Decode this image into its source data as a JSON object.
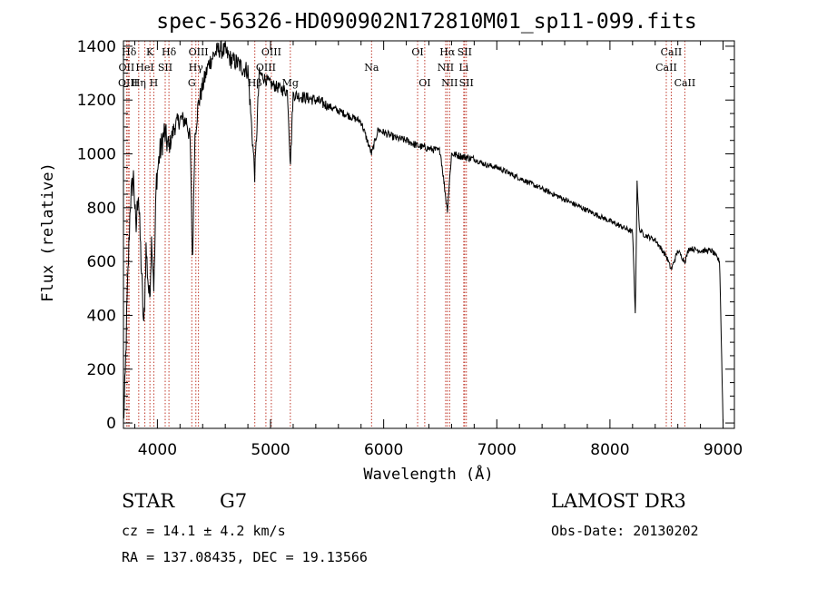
{
  "chart_data": {
    "type": "line",
    "title": "spec-56326-HD090902N172810M01_sp11-099.fits",
    "xlabel": "Wavelength (Å)",
    "ylabel": "Flux (relative)",
    "xlim": [
      3700,
      9100
    ],
    "ylim": [
      -20,
      1420
    ],
    "xticks": [
      4000,
      5000,
      6000,
      7000,
      8000,
      9000
    ],
    "yticks": [
      0,
      200,
      400,
      600,
      800,
      1000,
      1200,
      1400
    ],
    "spectrum_anchors": [
      [
        3700,
        0
      ],
      [
        3715,
        150
      ],
      [
        3730,
        420
      ],
      [
        3760,
        820
      ],
      [
        3790,
        920
      ],
      [
        3810,
        700
      ],
      [
        3830,
        880
      ],
      [
        3860,
        560
      ],
      [
        3880,
        340
      ],
      [
        3900,
        650
      ],
      [
        3930,
        450
      ],
      [
        3950,
        700
      ],
      [
        3970,
        500
      ],
      [
        3990,
        900
      ],
      [
        4020,
        1000
      ],
      [
        4060,
        1080
      ],
      [
        4100,
        1020
      ],
      [
        4150,
        1100
      ],
      [
        4200,
        1130
      ],
      [
        4260,
        1120
      ],
      [
        4290,
        1050
      ],
      [
        4310,
        580
      ],
      [
        4330,
        1060
      ],
      [
        4360,
        1180
      ],
      [
        4400,
        1250
      ],
      [
        4450,
        1330
      ],
      [
        4500,
        1370
      ],
      [
        4550,
        1390
      ],
      [
        4600,
        1380
      ],
      [
        4650,
        1350
      ],
      [
        4700,
        1340
      ],
      [
        4750,
        1320
      ],
      [
        4800,
        1310
      ],
      [
        4861,
        920
      ],
      [
        4900,
        1300
      ],
      [
        4950,
        1280
      ],
      [
        5000,
        1260
      ],
      [
        5050,
        1250
      ],
      [
        5100,
        1240
      ],
      [
        5150,
        1230
      ],
      [
        5175,
        960
      ],
      [
        5200,
        1220
      ],
      [
        5300,
        1210
      ],
      [
        5400,
        1200
      ],
      [
        5500,
        1180
      ],
      [
        5600,
        1160
      ],
      [
        5700,
        1140
      ],
      [
        5800,
        1120
      ],
      [
        5893,
        1000
      ],
      [
        5950,
        1090
      ],
      [
        6000,
        1080
      ],
      [
        6100,
        1060
      ],
      [
        6200,
        1050
      ],
      [
        6300,
        1030
      ],
      [
        6400,
        1020
      ],
      [
        6500,
        1010
      ],
      [
        6563,
        790
      ],
      [
        6600,
        1000
      ],
      [
        6700,
        990
      ],
      [
        6800,
        980
      ],
      [
        6900,
        960
      ],
      [
        7000,
        950
      ],
      [
        7100,
        930
      ],
      [
        7200,
        910
      ],
      [
        7300,
        890
      ],
      [
        7400,
        870
      ],
      [
        7500,
        850
      ],
      [
        7600,
        830
      ],
      [
        7700,
        810
      ],
      [
        7800,
        790
      ],
      [
        7900,
        770
      ],
      [
        8000,
        750
      ],
      [
        8100,
        730
      ],
      [
        8200,
        710
      ],
      [
        8225,
        400
      ],
      [
        8240,
        900
      ],
      [
        8260,
        720
      ],
      [
        8300,
        700
      ],
      [
        8400,
        680
      ],
      [
        8498,
        620
      ],
      [
        8542,
        570
      ],
      [
        8600,
        640
      ],
      [
        8662,
        600
      ],
      [
        8700,
        650
      ],
      [
        8800,
        640
      ],
      [
        8900,
        640
      ],
      [
        8970,
        600
      ],
      [
        8990,
        200
      ],
      [
        9000,
        0
      ]
    ],
    "emission_lines": [
      {
        "label": "Hδ",
        "x": 3750,
        "row": 1
      },
      {
        "label": "K",
        "x": 3934,
        "row": 1
      },
      {
        "label": "Hδ",
        "x": 4102,
        "row": 1
      },
      {
        "label": "OIII",
        "x": 4363,
        "row": 1
      },
      {
        "label": "OIII",
        "x": 5007,
        "row": 1
      },
      {
        "label": "OI",
        "x": 6300,
        "row": 1
      },
      {
        "label": "Hα",
        "x": 6563,
        "row": 1
      },
      {
        "label": "SII",
        "x": 6716,
        "row": 1
      },
      {
        "label": "CaII",
        "x": 8542,
        "row": 1
      },
      {
        "label": "OII",
        "x": 3727,
        "row": 2
      },
      {
        "label": "HeI",
        "x": 3889,
        "row": 2
      },
      {
        "label": "SII",
        "x": 4069,
        "row": 2
      },
      {
        "label": "Hγ",
        "x": 4340,
        "row": 2
      },
      {
        "label": "OIII",
        "x": 4959,
        "row": 2
      },
      {
        "label": "Na",
        "x": 5893,
        "row": 2
      },
      {
        "label": "NII",
        "x": 6548,
        "row": 2
      },
      {
        "label": "Li",
        "x": 6708,
        "row": 2
      },
      {
        "label": "CaII",
        "x": 8498,
        "row": 2
      },
      {
        "label": "OIII",
        "x": 3740,
        "row": 3
      },
      {
        "label": "Hη",
        "x": 3835,
        "row": 3
      },
      {
        "label": "H",
        "x": 3968,
        "row": 3
      },
      {
        "label": "G",
        "x": 4304,
        "row": 3
      },
      {
        "label": "Hβ",
        "x": 4861,
        "row": 3
      },
      {
        "label": "Mg",
        "x": 5175,
        "row": 3
      },
      {
        "label": "OI",
        "x": 6363,
        "row": 3
      },
      {
        "label": "NII",
        "x": 6583,
        "row": 3
      },
      {
        "label": "SII",
        "x": 6731,
        "row": 3
      },
      {
        "label": "CaII",
        "x": 8662,
        "row": 3
      }
    ]
  },
  "info": {
    "object_class": "STAR",
    "subclass": "G7",
    "survey": "LAMOST DR3",
    "cz": "cz = 14.1 ± 4.2 km/s",
    "obs_date": "Obs-Date: 20130202",
    "coords": "RA = 137.08435, DEC =  19.13566"
  },
  "colors": {
    "spectrum": "#000000",
    "line_marker": "#c0392b",
    "axis": "#000000",
    "background": "#ffffff"
  }
}
